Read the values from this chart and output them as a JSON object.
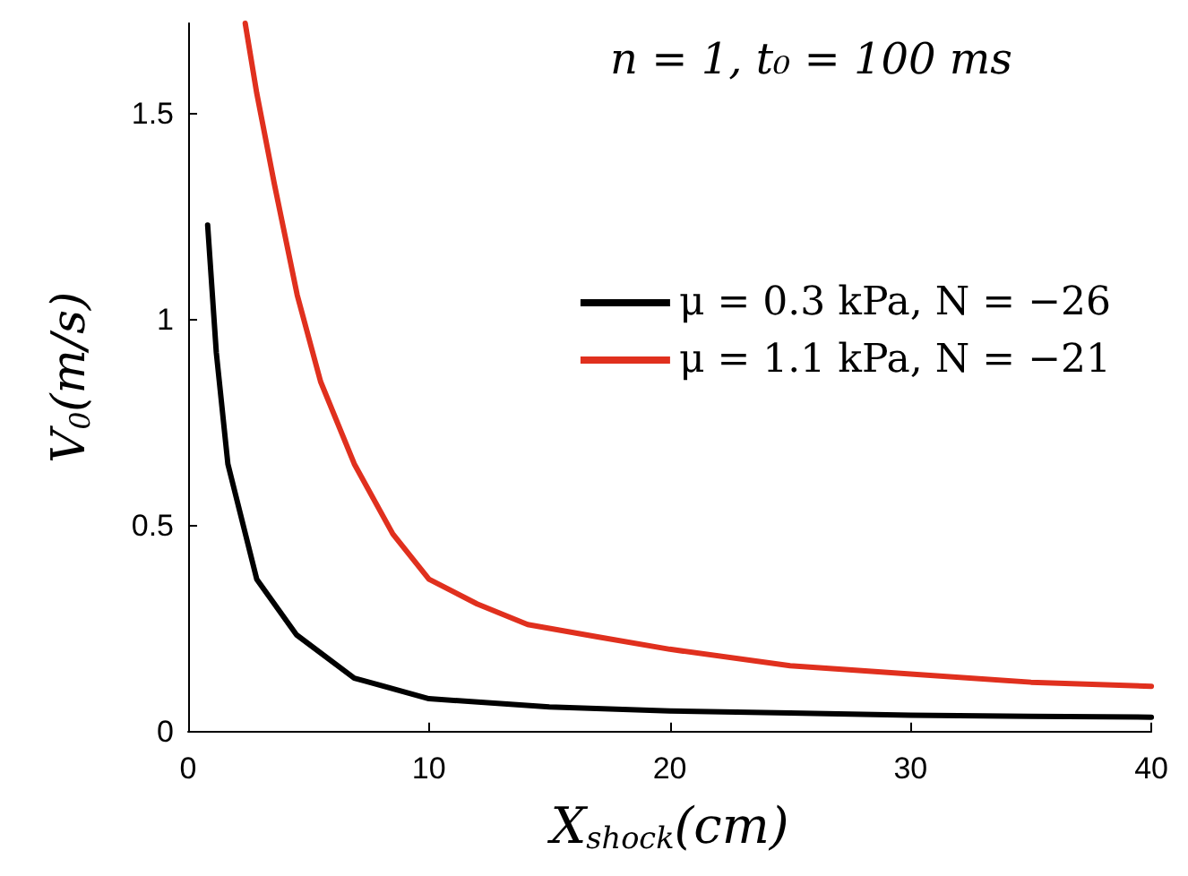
{
  "chart_data": {
    "type": "line",
    "title": "n = 1, t₀ = 100 ms",
    "xlabel": "X$_{shock}$(cm)",
    "ylabel": "V$_{0}$(m/s)",
    "xlim": [
      0,
      40
    ],
    "ylim": [
      0,
      1.72
    ],
    "xticks": [
      0,
      10,
      20,
      30,
      40
    ],
    "yticks": [
      0,
      0.5,
      1,
      1.5
    ],
    "grid": false,
    "legend": "right",
    "marker": "none",
    "line_style": "solid",
    "series": [
      {
        "name": "μ = 0.3 kPa, N = −26",
        "color": "#000000",
        "x": [
          0.81,
          1.17,
          1.65,
          2.85,
          4.5,
          6.9,
          10,
          15,
          20,
          25,
          30,
          35,
          40
        ],
        "values": [
          1.23,
          0.92,
          0.65,
          0.37,
          0.235,
          0.13,
          0.08,
          0.06,
          0.05,
          0.045,
          0.04,
          0.037,
          0.035
        ]
      },
      {
        "name": "μ = 1.1 kPa, N = −21",
        "color": "#e0301e",
        "x": [
          2.37,
          2.85,
          3.58,
          4.53,
          5.5,
          6.9,
          8.5,
          10,
          12,
          14.1,
          17,
          20,
          25,
          30,
          35,
          40
        ],
        "values": [
          1.72,
          1.55,
          1.33,
          1.06,
          0.85,
          0.65,
          0.48,
          0.37,
          0.31,
          0.26,
          0.23,
          0.2,
          0.16,
          0.14,
          0.12,
          0.11
        ]
      }
    ]
  }
}
